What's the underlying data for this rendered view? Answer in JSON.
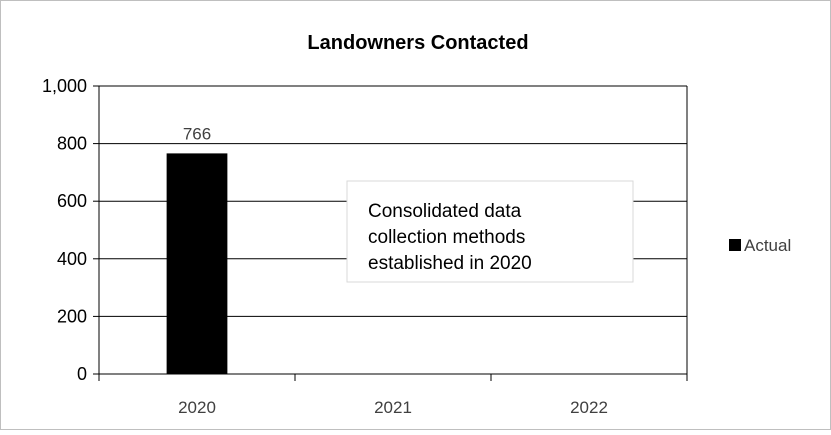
{
  "chart_data": {
    "type": "bar",
    "title": "Landowners Contacted",
    "categories": [
      "2020",
      "2021",
      "2022"
    ],
    "series": [
      {
        "name": "Actual",
        "values": [
          766,
          null,
          null
        ],
        "color": "#000000"
      }
    ],
    "data_labels": [
      "766",
      "",
      ""
    ],
    "yticks": [
      "0",
      "200",
      "400",
      "600",
      "800",
      "1,000"
    ],
    "ytick_values": [
      0,
      200,
      400,
      600,
      800,
      1000
    ],
    "ylim": [
      0,
      1000
    ],
    "grid": true,
    "legend_position": "right",
    "annotation": {
      "lines": [
        "Consolidated data",
        "collection methods",
        "established in 2020"
      ]
    }
  }
}
